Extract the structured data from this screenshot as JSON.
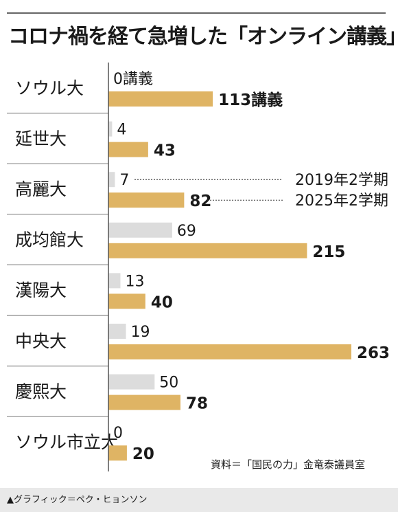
{
  "title": "コロナ禍を経て急増した「オンライン講義」",
  "source": "資料＝「国民の力」金竜泰議員室",
  "credit": "▲グラフィック＝ペク・ヒョンソン",
  "chart_data": {
    "type": "bar",
    "orientation": "horizontal",
    "categories": [
      "ソウル大",
      "延世大",
      "高麗大",
      "成均館大",
      "漢陽大",
      "中央大",
      "慶熙大",
      "ソウル市立大"
    ],
    "series": [
      {
        "name": "2019年2学期",
        "values": [
          0,
          4,
          7,
          69,
          13,
          19,
          50,
          0
        ],
        "color": "#dcdcdc"
      },
      {
        "name": "2025年2学期",
        "values": [
          113,
          43,
          82,
          215,
          40,
          263,
          78,
          20
        ],
        "color": "#dfb464"
      }
    ],
    "first_value_suffix": "講義",
    "legend_placement": "annotation-right",
    "xlim": [
      0,
      263
    ],
    "grid": false
  }
}
